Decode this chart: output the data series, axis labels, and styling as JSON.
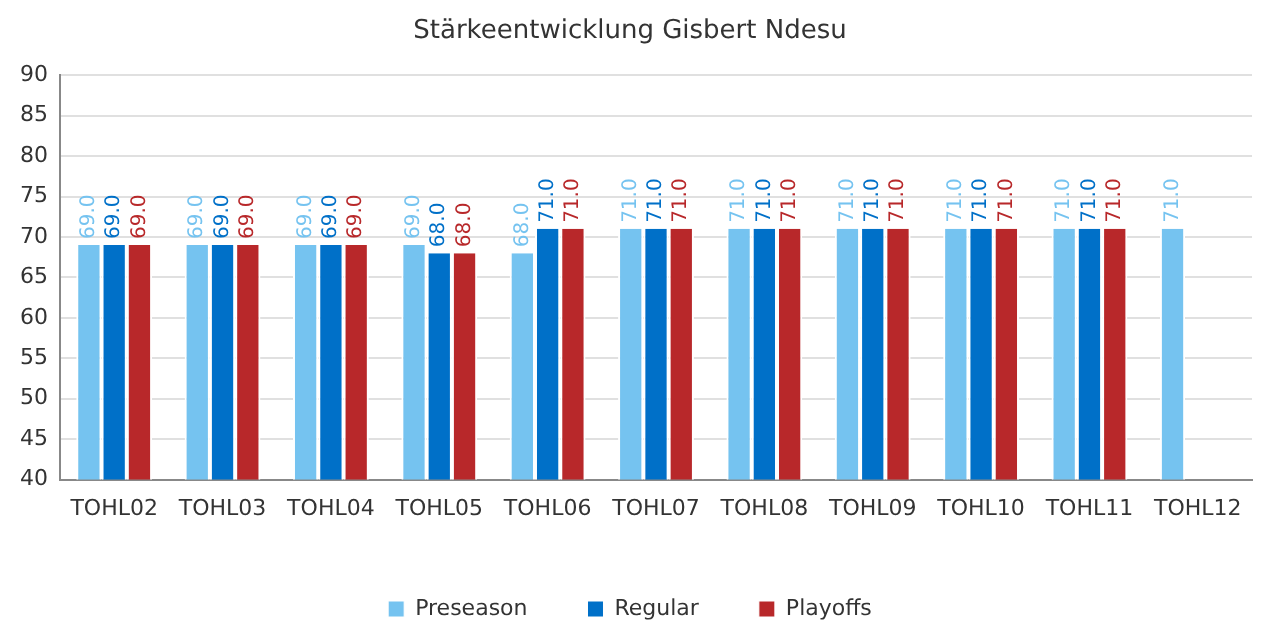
{
  "chart_data": {
    "type": "bar",
    "title": "Stärkeentwicklung Gisbert Ndesu",
    "categories": [
      "TOHL02",
      "TOHL03",
      "TOHL04",
      "TOHL05",
      "TOHL06",
      "TOHL07",
      "TOHL08",
      "TOHL09",
      "TOHL10",
      "TOHL11",
      "TOHL12"
    ],
    "series": [
      {
        "name": "Preseason",
        "color": "#75c3f0",
        "values": [
          69,
          69,
          69,
          69,
          68,
          71,
          71,
          71,
          71,
          71,
          71
        ],
        "value_labels": [
          "69.0",
          "69.0",
          "69.0",
          "69.0",
          "68.0",
          "71.0",
          "71.0",
          "71.0",
          "71.0",
          "71.0",
          "71.0"
        ]
      },
      {
        "name": "Regular",
        "color": "#0070c8",
        "values": [
          69,
          69,
          69,
          68,
          71,
          71,
          71,
          71,
          71,
          71,
          null
        ],
        "value_labels": [
          "69.0",
          "69.0",
          "69.0",
          "68.0",
          "71.0",
          "71.0",
          "71.0",
          "71.0",
          "71.0",
          "71.0",
          null
        ]
      },
      {
        "name": "Playoffs",
        "color": "#b8282a",
        "values": [
          69,
          69,
          69,
          68,
          71,
          71,
          71,
          71,
          71,
          71,
          null
        ],
        "value_labels": [
          "69.0",
          "69.0",
          "69.0",
          "68.0",
          "71.0",
          "71.0",
          "71.0",
          "71.0",
          "71.0",
          "71.0",
          null
        ]
      }
    ],
    "ylim": [
      40,
      90
    ],
    "yticks": [
      40,
      45,
      50,
      55,
      60,
      65,
      70,
      75,
      80,
      85,
      90
    ],
    "grid": "y",
    "legend": "bottom"
  }
}
